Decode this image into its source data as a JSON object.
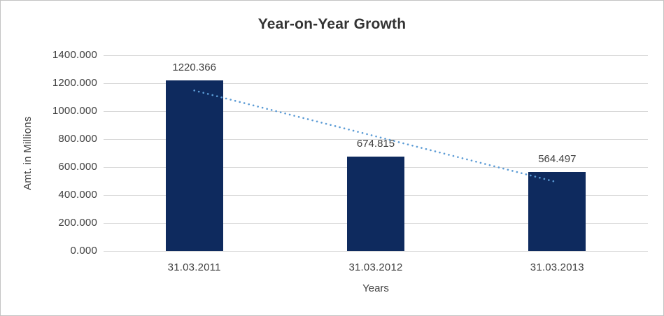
{
  "chart_data": {
    "type": "bar",
    "title": "Year-on-Year Growth",
    "xlabel": "Years",
    "ylabel": "Amt. in Millions",
    "categories": [
      "31.03.2011",
      "31.03.2012",
      "31.03.2013"
    ],
    "values": [
      1220.366,
      674.815,
      564.497
    ],
    "data_labels": [
      "1220.366",
      "674.815",
      "564.497"
    ],
    "ylim": [
      0,
      1400
    ],
    "y_tick_step": 200,
    "y_tick_labels": [
      "0.000",
      "200.000",
      "400.000",
      "600.000",
      "800.000",
      "1000.000",
      "1200.000",
      "1400.000"
    ],
    "grid": true,
    "legend": "none",
    "trendline": {
      "type": "linear",
      "style": "round-dot",
      "values_at_first_last_category": [
        1147.8,
        492.0
      ]
    },
    "colors": {
      "bar": "#0E2A5E",
      "trendline": "#5B9BD5",
      "gridline": "#D9D9D9",
      "text": "#404040",
      "title": "#333333"
    }
  }
}
